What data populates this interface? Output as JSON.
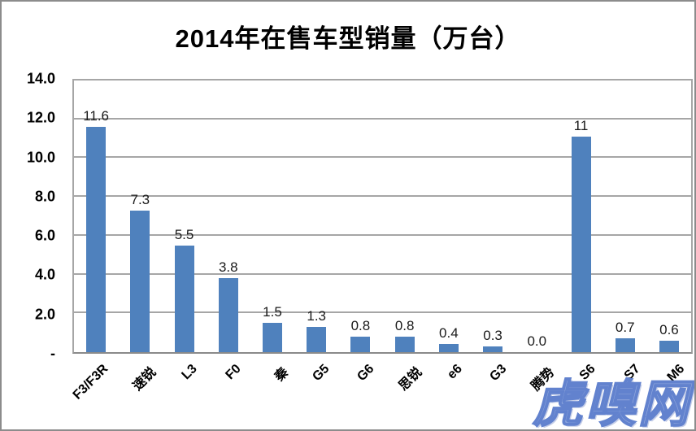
{
  "title": "2014年在售车型销量（万台）",
  "watermark": "虎嗅网",
  "colors": {
    "bar": "#4F81BD",
    "gridline": "#A6A6A6",
    "axis_line": "#8A8A8A",
    "frame_border": "#8C8C8C",
    "watermark_fill": "#96ACDF",
    "watermark_stroke": "#6282CE"
  },
  "chart_data": {
    "type": "bar",
    "title": "2014年在售车型销量（万台）",
    "categories": [
      "F3/F3R",
      "速锐",
      "L3",
      "F0",
      "秦",
      "G5",
      "G6",
      "思锐",
      "e6",
      "G3",
      "腾势",
      "S6",
      "S7",
      "M6"
    ],
    "values": [
      11.6,
      7.3,
      5.5,
      3.8,
      1.5,
      1.3,
      0.8,
      0.8,
      0.4,
      0.3,
      0.0,
      11.1,
      0.7,
      0.6
    ],
    "value_labels": [
      "11.6",
      "7.3",
      "5.5",
      "3.8",
      "1.5",
      "1.3",
      "0.8",
      "0.8",
      "0.4",
      "0.3",
      "0.0",
      "11",
      "0.7",
      "0.6"
    ],
    "xlabel": "",
    "ylabel": "",
    "ylim": [
      0,
      14
    ],
    "ytick_step": 2,
    "ytick_labels_bottom_to_top": [
      "-",
      "2.0",
      "4.0",
      "6.0",
      "8.0",
      "10.0",
      "12.0",
      "14.0"
    ],
    "grid": true,
    "legend_position": "none"
  }
}
